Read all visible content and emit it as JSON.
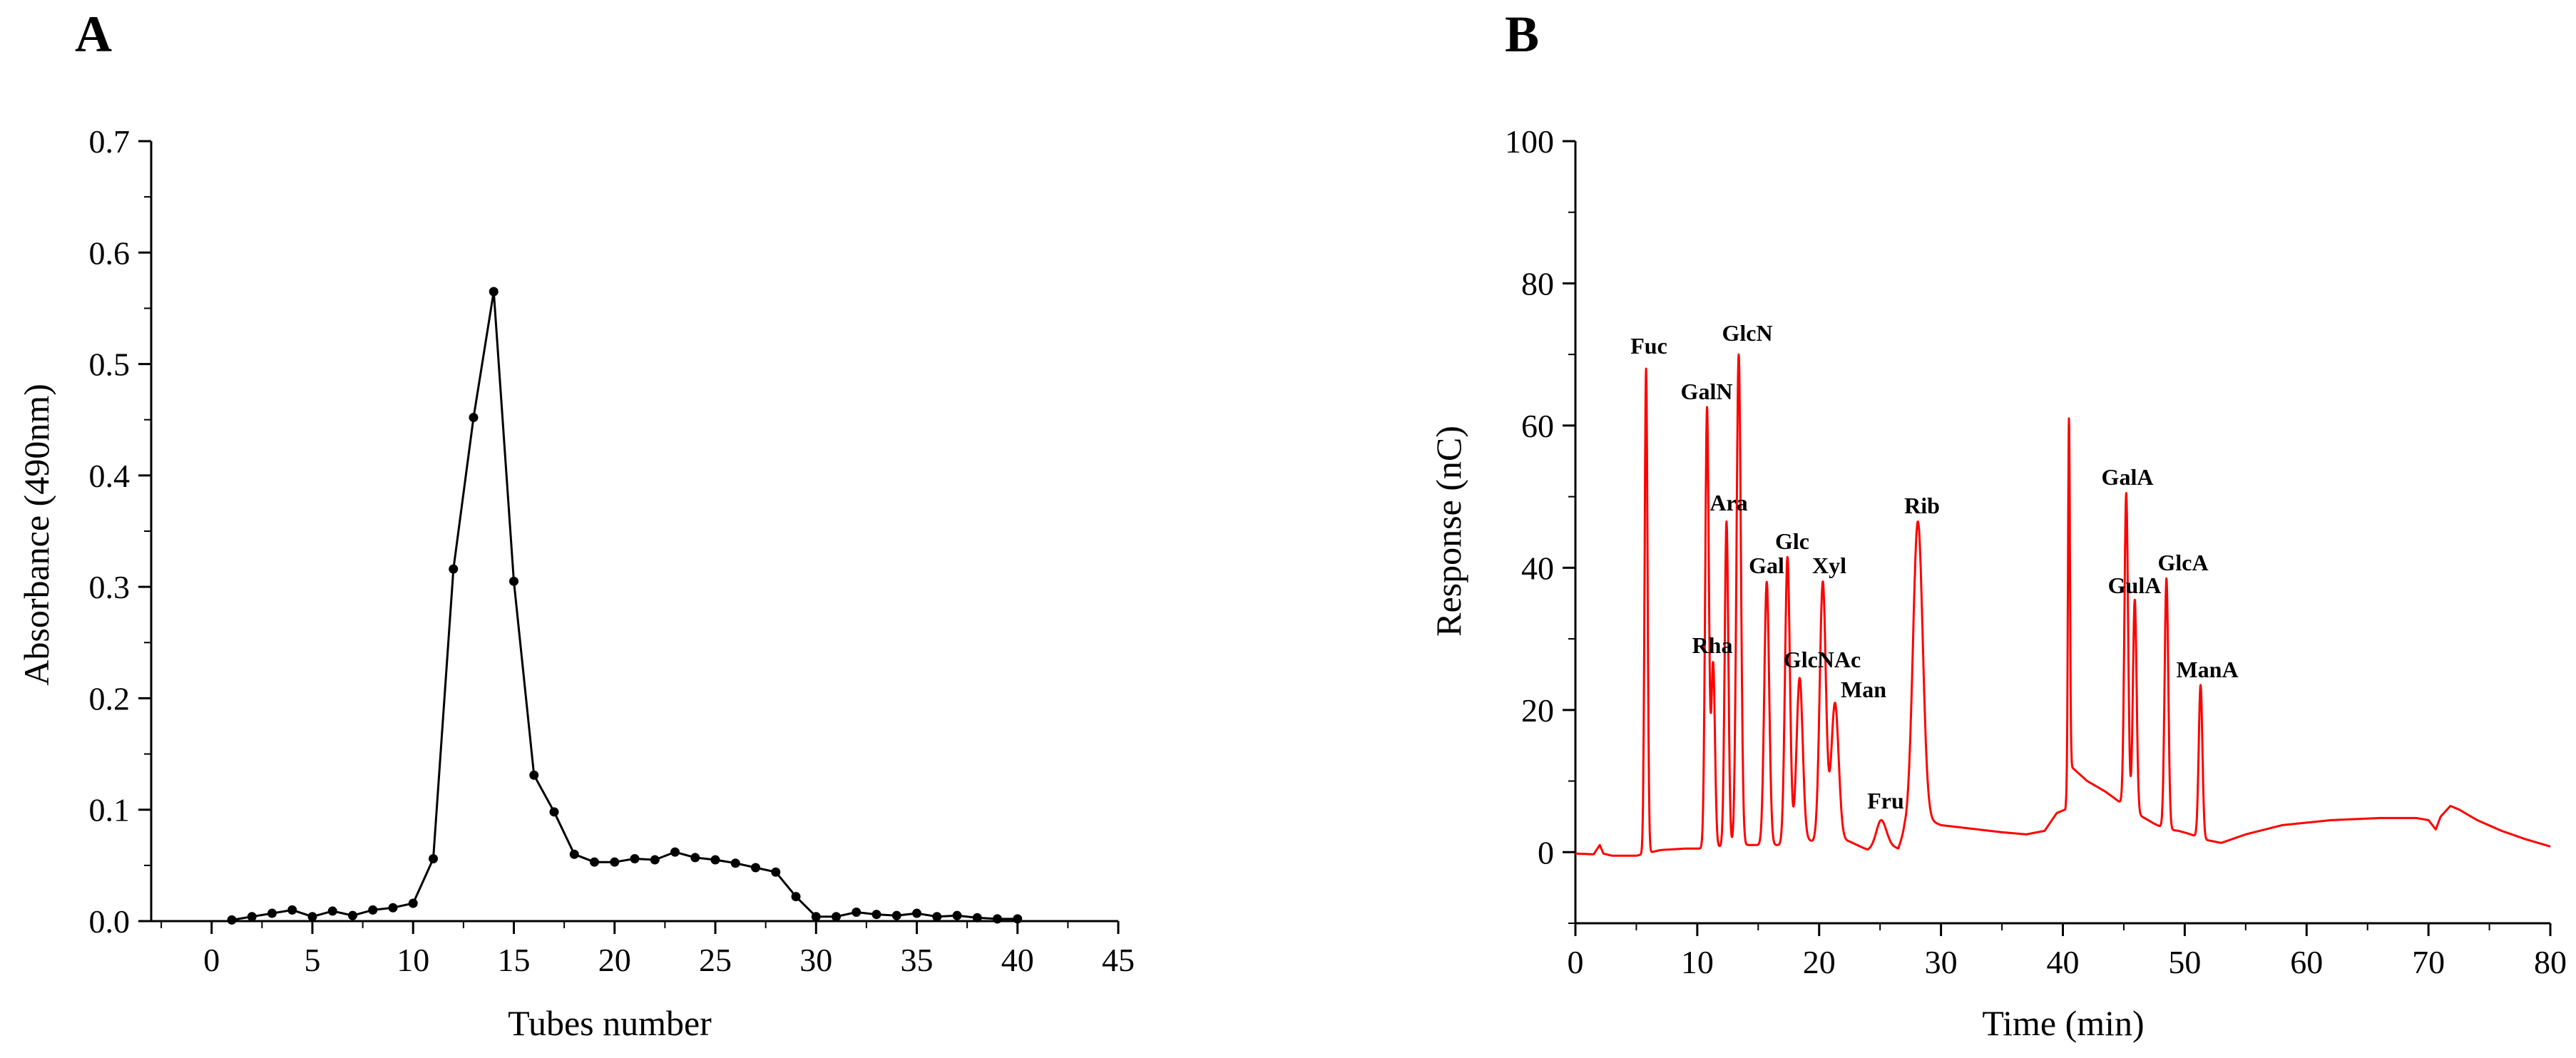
{
  "figure": {
    "panels": [
      "A",
      "B"
    ]
  },
  "chart_data": [
    {
      "type": "line",
      "panel": "A",
      "title": "",
      "xlabel": "Tubes number",
      "ylabel": "Absorbance (490nm)",
      "xlim": [
        -3,
        45
      ],
      "ylim": [
        0,
        0.7
      ],
      "xticks": [
        "0",
        "5",
        "10",
        "15",
        "20",
        "25",
        "30",
        "35",
        "40",
        "45"
      ],
      "yticks": [
        "0.0",
        "0.1",
        "0.2",
        "0.3",
        "0.4",
        "0.5",
        "0.6",
        "0.7"
      ],
      "grid": false,
      "markers": true,
      "color": "#000000",
      "x": [
        1,
        2,
        3,
        4,
        5,
        6,
        7,
        8,
        9,
        10,
        11,
        12,
        13,
        14,
        15,
        16,
        17,
        18,
        19,
        20,
        21,
        22,
        23,
        24,
        25,
        26,
        27,
        28,
        29,
        30,
        31,
        32,
        33,
        34,
        35,
        36,
        37,
        38,
        39,
        40
      ],
      "values": [
        0.001,
        0.004,
        0.007,
        0.01,
        0.004,
        0.009,
        0.005,
        0.01,
        0.012,
        0.016,
        0.056,
        0.316,
        0.452,
        0.565,
        0.305,
        0.131,
        0.098,
        0.06,
        0.053,
        0.053,
        0.056,
        0.055,
        0.062,
        0.057,
        0.055,
        0.052,
        0.048,
        0.044,
        0.022,
        0.004,
        0.004,
        0.008,
        0.006,
        0.005,
        0.007,
        0.004,
        0.005,
        0.003,
        0.002,
        0.002
      ]
    },
    {
      "type": "line",
      "panel": "B",
      "title": "",
      "xlabel": "Time (min)",
      "ylabel": "Response (nC)",
      "xlim": [
        0,
        80
      ],
      "ylim": [
        -10,
        100
      ],
      "xticks": [
        "0",
        "10",
        "20",
        "30",
        "40",
        "50",
        "60",
        "70",
        "80"
      ],
      "yticks": [
        "0",
        "20",
        "40",
        "60",
        "80",
        "100"
      ],
      "grid": false,
      "color": "#ff0000",
      "baseline": [
        [
          0,
          -0.2
        ],
        [
          1.5,
          -0.3
        ],
        [
          2,
          1
        ],
        [
          2.3,
          -0.2
        ],
        [
          3,
          -0.5
        ],
        [
          5,
          -0.5
        ],
        [
          7,
          0.3
        ],
        [
          9,
          0.5
        ],
        [
          10.3,
          0.5
        ],
        [
          13,
          1
        ],
        [
          14.5,
          1
        ],
        [
          16,
          1
        ],
        [
          17,
          1
        ],
        [
          18.5,
          2
        ],
        [
          19.5,
          1.5
        ],
        [
          20.3,
          2
        ],
        [
          21.4,
          2
        ],
        [
          22.5,
          1.5
        ],
        [
          24,
          0.3
        ],
        [
          25,
          1
        ],
        [
          25.7,
          1
        ],
        [
          26.5,
          0.5
        ],
        [
          27,
          3
        ],
        [
          29,
          4.5
        ],
        [
          30,
          3.8
        ],
        [
          33,
          3.2
        ],
        [
          35,
          2.8
        ],
        [
          37,
          2.5
        ],
        [
          38.5,
          3
        ],
        [
          39.5,
          5.5
        ],
        [
          40.2,
          6
        ],
        [
          40.7,
          12
        ],
        [
          42,
          10
        ],
        [
          43.5,
          8.5
        ],
        [
          44.3,
          7.5
        ],
        [
          45.5,
          6
        ],
        [
          46.5,
          5
        ],
        [
          47.5,
          4
        ],
        [
          48.5,
          3.2
        ],
        [
          49.5,
          3
        ],
        [
          50.5,
          2.5
        ],
        [
          51.5,
          1.8
        ],
        [
          53,
          1.3
        ],
        [
          55,
          2.5
        ],
        [
          58,
          3.8
        ],
        [
          62,
          4.5
        ],
        [
          66,
          4.8
        ],
        [
          69,
          4.8
        ],
        [
          70,
          4.5
        ],
        [
          70.6,
          3.2
        ],
        [
          71,
          5
        ],
        [
          71.8,
          6.5
        ],
        [
          72.5,
          6
        ],
        [
          74,
          4.5
        ],
        [
          76,
          3
        ],
        [
          78,
          1.8
        ],
        [
          80,
          0.8
        ]
      ],
      "peaks": [
        {
          "label": "Fuc",
          "time": 5.8,
          "height": 68,
          "width": 0.12
        },
        {
          "label": "GalN",
          "time": 10.8,
          "height": 62.5,
          "width": 0.15
        },
        {
          "label": "Rha",
          "time": 11.3,
          "height": 26.5,
          "width": 0.15
        },
        {
          "label": "Ara",
          "time": 12.4,
          "height": 46.5,
          "width": 0.15
        },
        {
          "label": "GlcN",
          "time": 13.4,
          "height": 70,
          "width": 0.18
        },
        {
          "label": "Gal",
          "time": 15.7,
          "height": 38,
          "width": 0.2
        },
        {
          "label": "Glc",
          "time": 17.4,
          "height": 41.5,
          "width": 0.2
        },
        {
          "label": "GlcNAc",
          "time": 18.4,
          "height": 24.5,
          "width": 0.25
        },
        {
          "label": "Xyl",
          "time": 20.3,
          "height": 38,
          "width": 0.25
        },
        {
          "label": "Man",
          "time": 21.3,
          "height": 21,
          "width": 0.3
        },
        {
          "label": "Fru",
          "time": 25.1,
          "height": 4.5,
          "width": 0.4
        },
        {
          "label": "Rib",
          "time": 28.1,
          "height": 46.5,
          "width": 0.4
        },
        {
          "label": "",
          "time": 40.5,
          "height": 61,
          "width": 0.08
        },
        {
          "label": "GalA",
          "time": 45.2,
          "height": 50.5,
          "width": 0.15
        },
        {
          "label": "GulA",
          "time": 45.9,
          "height": 35.5,
          "width": 0.15
        },
        {
          "label": "GlcA",
          "time": 48.5,
          "height": 38.5,
          "width": 0.15
        },
        {
          "label": "ManA",
          "time": 51.3,
          "height": 23.5,
          "width": 0.15
        }
      ]
    }
  ]
}
